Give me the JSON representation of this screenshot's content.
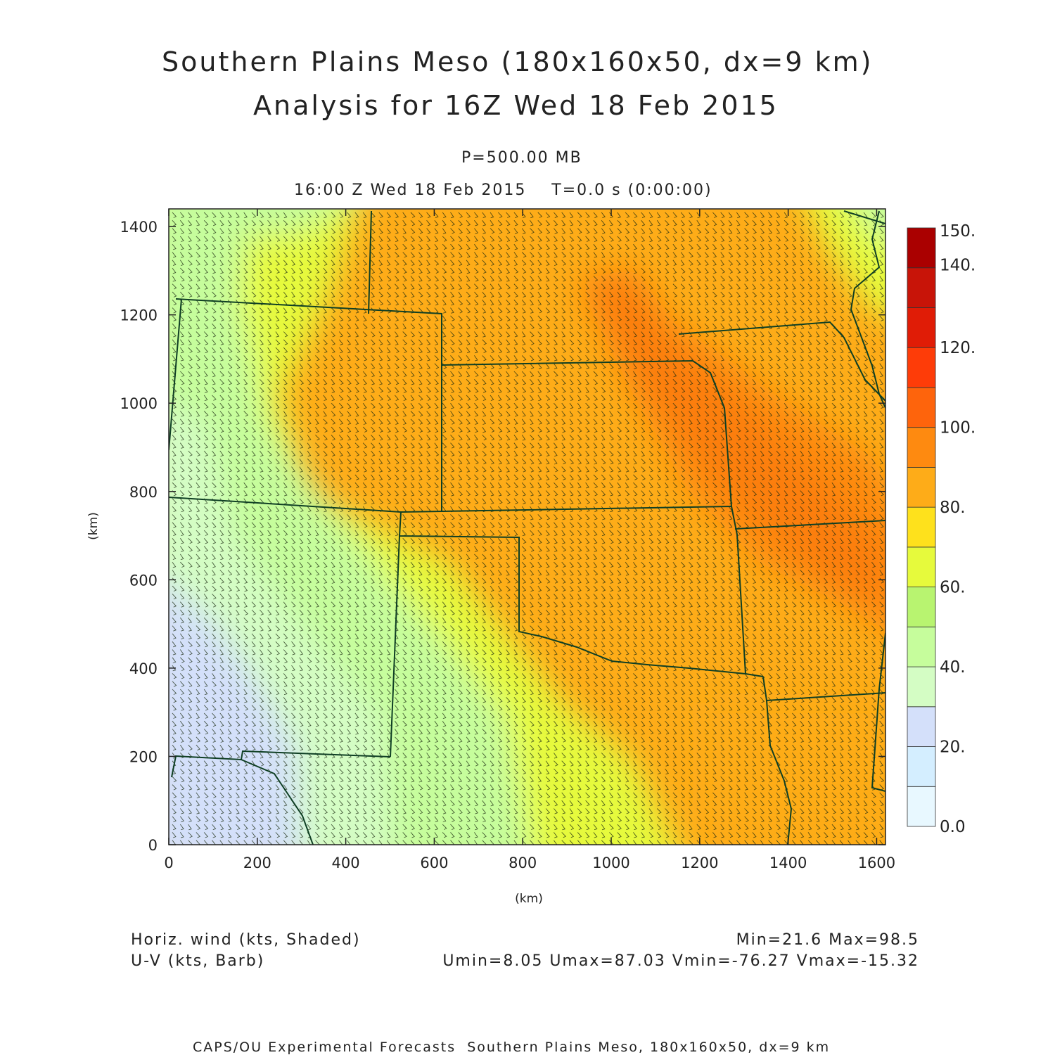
{
  "header": {
    "title_line1": "Southern Plains Meso (180x160x50, dx=9 km)",
    "title_line2": "Analysis for 16Z Wed 18 Feb 2015",
    "level": "P=500.00 MB",
    "valid_time": "16:00 Z Wed 18 Feb 2015    T=0.0 s (0:00:00)"
  },
  "legend": {
    "shaded_label": "Horiz. wind (kts, Shaded)",
    "barb_label": "U-V (kts, Barb)",
    "minmax": "Min=21.6 Max=98.5",
    "uv_minmax": "Umin=8.05 Umax=87.03 Vmin=-76.27 Vmax=-15.32"
  },
  "footer": {
    "text": "CAPS/OU Experimental Forecasts  Southern Plains Meso, 180x160x50, dx=9 km"
  },
  "axes": {
    "xlabel": "(km)",
    "ylabel": "(km)",
    "xticks": [
      "0",
      "200",
      "400",
      "600",
      "800",
      "1000",
      "1200",
      "1400",
      "1600"
    ],
    "yticks": [
      "0",
      "200",
      "400",
      "600",
      "800",
      "1000",
      "1200",
      "1400"
    ],
    "xlim": [
      0,
      1620
    ],
    "ylim": [
      0,
      1440
    ]
  },
  "colorbar": {
    "tick_labels": [
      "0.0",
      "20.",
      "40.",
      "60.",
      "80.",
      "100.",
      "120.",
      "140.",
      "150."
    ],
    "levels": [
      0,
      10,
      20,
      30,
      40,
      50,
      60,
      70,
      80,
      90,
      100,
      110,
      120,
      130,
      140,
      150
    ],
    "colors": [
      "#e8f8ff",
      "#d4eeff",
      "#d4e0fa",
      "#d4fdc4",
      "#c6fd9c",
      "#b8f470",
      "#e6fa3c",
      "#fee11c",
      "#feac18",
      "#fe8a10",
      "#fe640c",
      "#fe3c08",
      "#e01c06",
      "#c81408",
      "#aa0000"
    ]
  },
  "colors": {
    "boundary": "#0f3f24",
    "barb": "#1a2a10"
  }
}
